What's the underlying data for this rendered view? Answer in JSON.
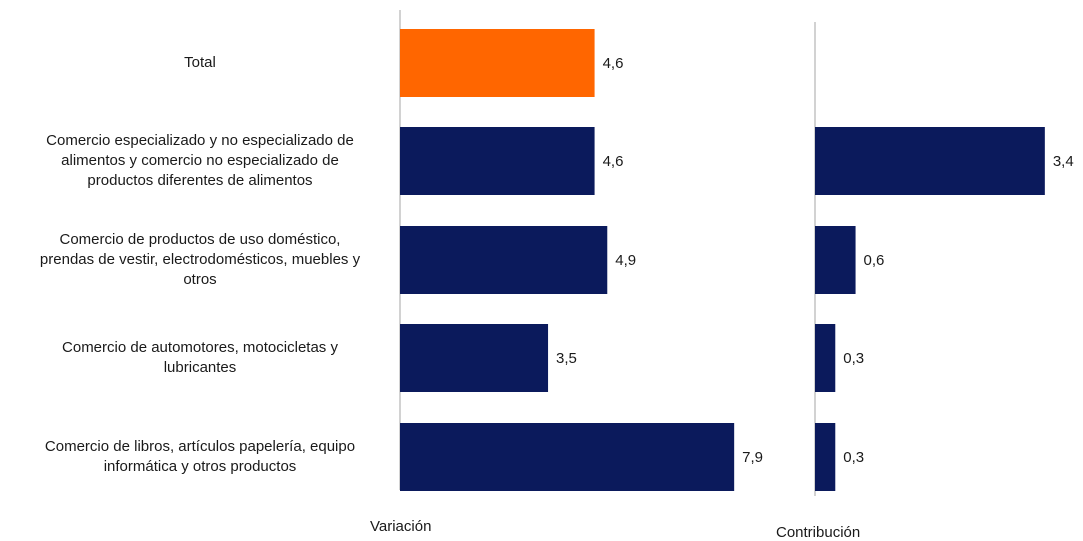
{
  "chart_data": {
    "type": "bar",
    "orientation": "horizontal",
    "categories": [
      "Total",
      "Comercio especializado y no especializado de alimentos y comercio no especializado de productos diferentes de alimentos",
      "Comercio de productos de uso doméstico, prendas de vestir, electrodomésticos, muebles y otros",
      "Comercio de automotores, motocicletas y lubricantes",
      "Comercio de libros, artículos papelería, equipo informática y otros productos"
    ],
    "category_lines": [
      [
        "Total"
      ],
      [
        "Comercio especializado y no especializado de",
        "alimentos y comercio no especializado de",
        "productos diferentes de alimentos"
      ],
      [
        "Comercio de productos de uso doméstico,",
        "prendas de vestir, electrodomésticos, muebles y",
        "otros"
      ],
      [
        "Comercio de automotores, motocicletas y",
        "lubricantes"
      ],
      [
        "Comercio de libros, artículos papelería, equipo",
        "informática y otros productos"
      ]
    ],
    "panels": [
      {
        "name": "Variación",
        "values": [
          4.6,
          4.6,
          4.9,
          3.5,
          7.9
        ],
        "labels": [
          "4,6",
          "4,6",
          "4,9",
          "3,5",
          "7,9"
        ]
      },
      {
        "name": "Contribución",
        "values": [
          null,
          3.4,
          0.6,
          0.3,
          0.3
        ],
        "labels": [
          "",
          "3,4",
          "0,6",
          "0,3",
          "0,3"
        ]
      }
    ],
    "colors": {
      "total": "#FF6600",
      "sector": "#0B1A5C",
      "axis": "#A6A6A6"
    },
    "legend": "none",
    "grid": false
  }
}
